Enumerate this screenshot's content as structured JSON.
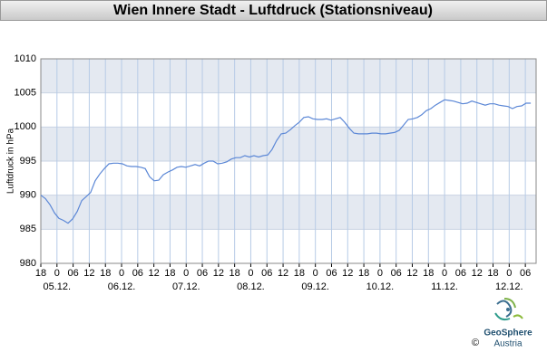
{
  "chart_data": {
    "type": "line",
    "title": "Wien Innere Stadt - Luftdruck (Stationsniveau)",
    "y_label": "Luftdruck in hPa",
    "x": [
      0,
      1.7,
      3.4,
      5.1,
      6.7,
      8.4,
      10.1,
      11.8,
      13.5,
      15.2,
      16.9,
      18.5,
      20.2,
      21.9,
      23.6,
      25.3,
      27.0,
      28.6,
      30.3,
      32.0,
      33.7,
      35.4,
      37.1,
      38.8,
      40.4,
      42.1,
      43.8,
      45.5,
      47.2,
      48.9,
      50.6,
      52.2,
      53.9,
      55.6,
      57.3,
      59.0,
      60.7,
      62.3,
      64.0,
      65.7,
      67.4,
      69.1,
      70.8,
      72.5,
      74.1,
      75.8,
      77.5,
      79.2,
      80.9,
      82.6,
      84.3,
      85.9,
      87.6,
      89.3,
      91.0,
      92.7,
      94.4,
      96.0,
      97.7,
      99.4,
      101.1,
      102.8,
      104.5,
      106.2,
      107.8,
      109.5,
      111.2,
      112.9,
      114.6,
      116.3,
      118.0,
      119.6,
      121.3,
      123.0,
      124.7,
      126.4,
      128.1,
      129.7,
      131.4,
      133.1,
      134.8,
      136.5,
      138.2,
      139.9,
      141.5,
      143.2,
      144.9,
      146.6,
      148.3,
      150.0,
      151.7,
      153.3,
      155.0,
      156.7,
      158.4,
      160.1,
      161.8,
      163.4,
      165.1,
      166.8,
      168.5,
      170.2,
      171.9,
      173.6,
      175.2,
      176.9,
      178.6,
      180.3,
      182.0
    ],
    "series": [
      {
        "name": "Luftdruck",
        "color": "#5b87d6",
        "values": [
          990.0,
          989.5,
          988.6,
          987.4,
          986.6,
          986.3,
          985.9,
          986.5,
          987.6,
          989.2,
          989.8,
          990.4,
          992.1,
          993.1,
          993.9,
          994.6,
          994.7,
          994.7,
          994.6,
          994.3,
          994.2,
          994.2,
          994.1,
          993.9,
          992.7,
          992.1,
          992.2,
          993.0,
          993.4,
          993.7,
          994.1,
          994.2,
          994.1,
          994.3,
          994.5,
          994.3,
          994.7,
          995.0,
          995.0,
          994.6,
          994.7,
          994.9,
          995.3,
          995.5,
          995.5,
          995.8,
          995.6,
          995.8,
          995.6,
          995.8,
          995.9,
          996.7,
          998.0,
          999.0,
          999.1,
          999.6,
          1000.2,
          1000.7,
          1001.4,
          1001.5,
          1001.2,
          1001.1,
          1001.1,
          1001.2,
          1001.0,
          1001.2,
          1001.4,
          1000.7,
          999.8,
          999.1,
          999.0,
          999.0,
          999.0,
          999.1,
          999.1,
          999.0,
          999.0,
          999.1,
          999.2,
          999.5,
          1000.3,
          1001.1,
          1001.2,
          1001.4,
          1001.8,
          1002.4,
          1002.7,
          1003.2,
          1003.6,
          1004.0,
          1003.9,
          1003.8,
          1003.6,
          1003.4,
          1003.5,
          1003.8,
          1003.6,
          1003.4,
          1003.2,
          1003.4,
          1003.4,
          1003.2,
          1003.1,
          1003.0,
          1002.7,
          1003.0,
          1003.1,
          1003.5,
          1003.5
        ]
      }
    ],
    "xlim": [
      0,
      184
    ],
    "xticks": [
      {
        "value": 0,
        "label": "18"
      },
      {
        "value": 6,
        "label": "0"
      },
      {
        "value": 12,
        "label": "06"
      },
      {
        "value": 18,
        "label": "12"
      },
      {
        "value": 24,
        "label": "18"
      },
      {
        "value": 30,
        "label": "0"
      },
      {
        "value": 36,
        "label": "06"
      },
      {
        "value": 42,
        "label": "12"
      },
      {
        "value": 48,
        "label": "18"
      },
      {
        "value": 54,
        "label": "0"
      },
      {
        "value": 60,
        "label": "06"
      },
      {
        "value": 66,
        "label": "12"
      },
      {
        "value": 72,
        "label": "18"
      },
      {
        "value": 78,
        "label": "0"
      },
      {
        "value": 84,
        "label": "06"
      },
      {
        "value": 90,
        "label": "12"
      },
      {
        "value": 96,
        "label": "18"
      },
      {
        "value": 102,
        "label": "0"
      },
      {
        "value": 108,
        "label": "06"
      },
      {
        "value": 114,
        "label": "12"
      },
      {
        "value": 120,
        "label": "18"
      },
      {
        "value": 126,
        "label": "0"
      },
      {
        "value": 132,
        "label": "06"
      },
      {
        "value": 138,
        "label": "12"
      },
      {
        "value": 144,
        "label": "18"
      },
      {
        "value": 150,
        "label": "0"
      },
      {
        "value": 156,
        "label": "06"
      },
      {
        "value": 162,
        "label": "12"
      },
      {
        "value": 168,
        "label": "18"
      },
      {
        "value": 174,
        "label": "0"
      },
      {
        "value": 180,
        "label": "06"
      }
    ],
    "day_labels": [
      {
        "value": 6,
        "label": "05.12."
      },
      {
        "value": 30,
        "label": "06.12."
      },
      {
        "value": 54,
        "label": "07.12."
      },
      {
        "value": 78,
        "label": "08.12."
      },
      {
        "value": 102,
        "label": "09.12."
      },
      {
        "value": 126,
        "label": "10.12."
      },
      {
        "value": 150,
        "label": "11.12."
      },
      {
        "value": 174,
        "label": "12.12."
      }
    ],
    "ylim": [
      980,
      1010
    ],
    "yticks": [
      980,
      985,
      990,
      995,
      1000,
      1005,
      1010
    ],
    "grid": true,
    "logo": {
      "name": "GeoSphere",
      "subtitle": "Austria"
    },
    "copyright": "©"
  }
}
